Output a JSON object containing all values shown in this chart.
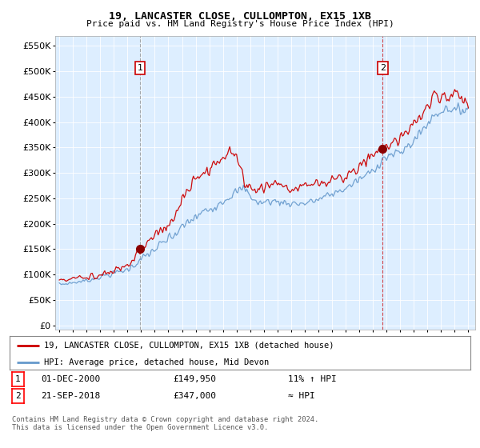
{
  "title": "19, LANCASTER CLOSE, CULLOMPTON, EX15 1XB",
  "subtitle": "Price paid vs. HM Land Registry's House Price Index (HPI)",
  "hpi_label": "HPI: Average price, detached house, Mid Devon",
  "property_label": "19, LANCASTER CLOSE, CULLOMPTON, EX15 1XB (detached house)",
  "footer": "Contains HM Land Registry data © Crown copyright and database right 2024.\nThis data is licensed under the Open Government Licence v3.0.",
  "sale1_year": 2000.92,
  "sale1_price": 149950,
  "sale2_year": 2018.72,
  "sale2_price": 347000,
  "red_color": "#cc0000",
  "blue_color": "#6699cc",
  "chart_bg": "#ddeeff",
  "background_color": "#ffffff",
  "grid_color": "#ffffff",
  "yticks": [
    0,
    50000,
    100000,
    150000,
    200000,
    250000,
    300000,
    350000,
    400000,
    450000,
    500000,
    550000
  ],
  "ylim": [
    -8000,
    570000
  ],
  "xlim_start": 1994.7,
  "xlim_end": 2025.5
}
